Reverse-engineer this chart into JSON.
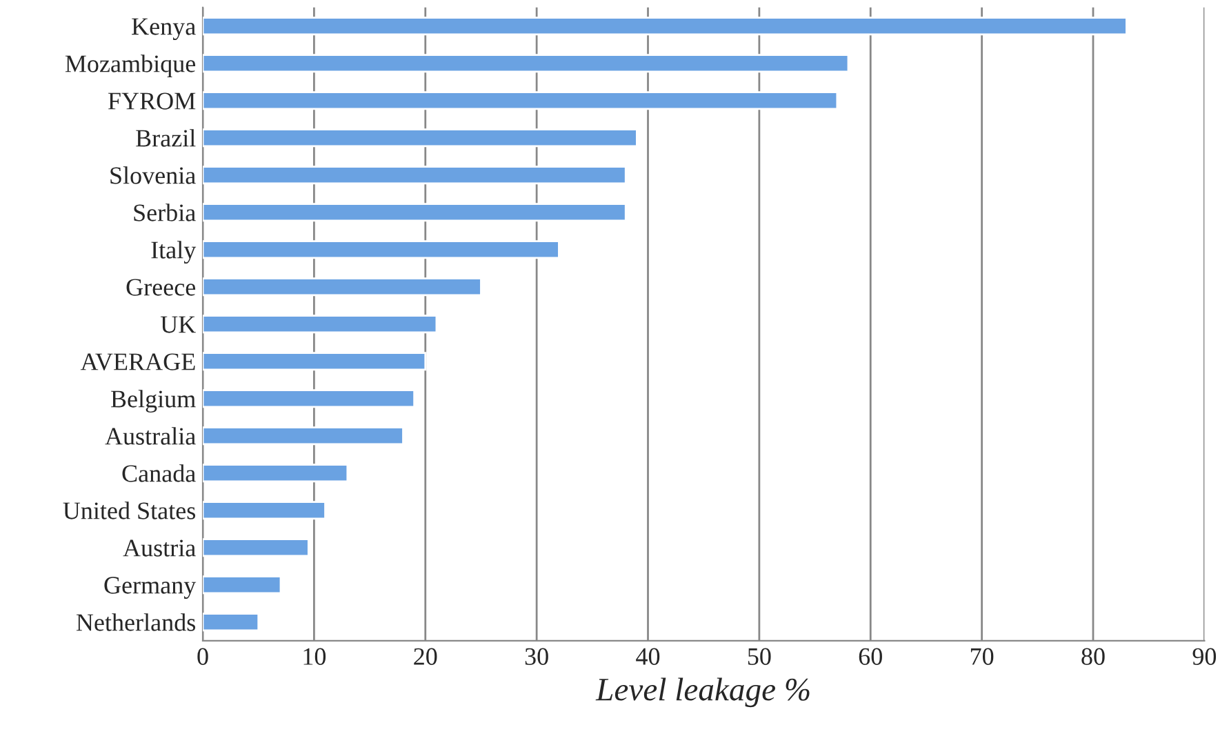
{
  "chart_data": {
    "type": "bar",
    "orientation": "horizontal",
    "xlabel": "Level leakage %",
    "categories": [
      "Kenya",
      "Mozambique",
      "FYROM",
      "Brazil",
      "Slovenia",
      "Serbia",
      "Italy",
      "Greece",
      "UK",
      "AVERAGE",
      "Belgium",
      "Australia",
      "Canada",
      "United States",
      "Austria",
      "Germany",
      "Netherlands"
    ],
    "values": [
      83,
      58,
      57,
      39,
      38,
      38,
      32,
      25,
      21,
      20,
      19,
      18,
      13,
      11,
      9.5,
      7,
      5
    ],
    "color": "#6aa2e2",
    "xlim": [
      0,
      90
    ],
    "xticks": [
      0,
      10,
      20,
      30,
      40,
      50,
      60,
      70,
      80,
      90
    ],
    "grid": "x",
    "legend": false
  }
}
